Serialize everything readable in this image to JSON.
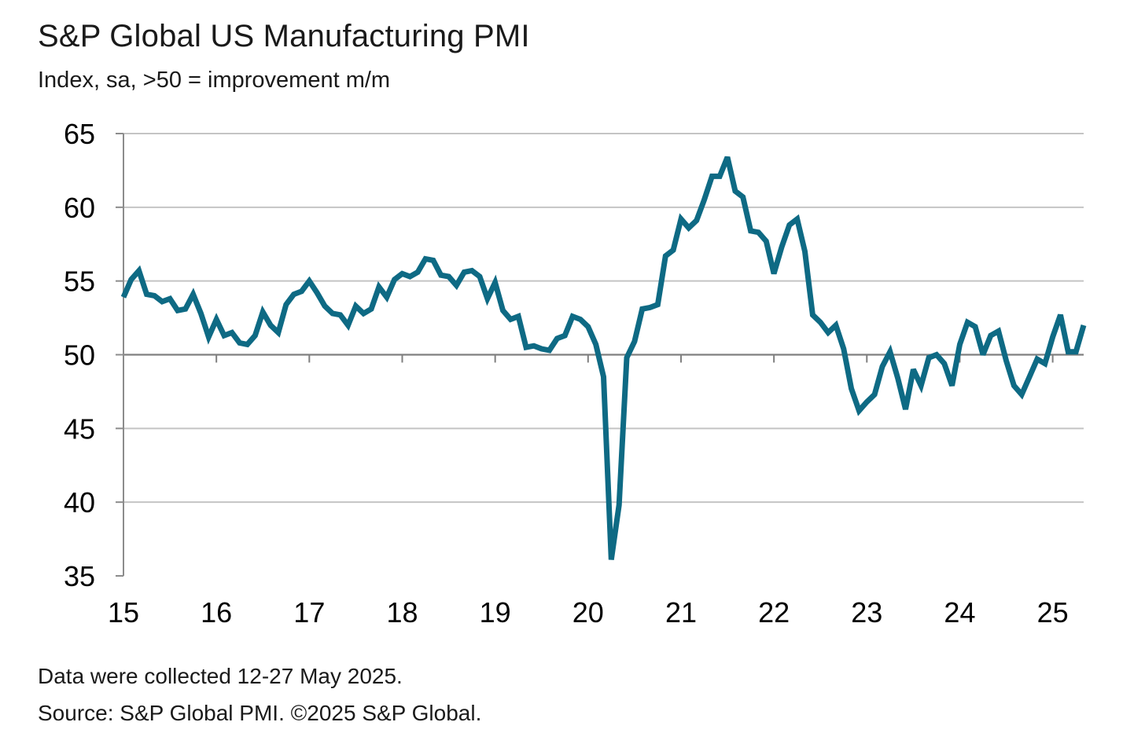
{
  "title": "S&P Global US Manufacturing PMI",
  "subtitle": "Index, sa, >50 = improvement m/m",
  "note_line1": "Data were collected 12-27 May 2025.",
  "note_line2": "Source: S&P Global PMI. ©2025 S&P Global.",
  "chart_data": {
    "type": "line",
    "title": "S&P Global US Manufacturing PMI",
    "ylabel": "Index, sa, >50 = improvement m/m",
    "ylim": [
      35,
      65
    ],
    "yticks": [
      35,
      40,
      45,
      50,
      55,
      60,
      65
    ],
    "xlim": [
      "2015-01",
      "2025-05"
    ],
    "xtick_labels": [
      "15",
      "16",
      "17",
      "18",
      "19",
      "20",
      "21",
      "22",
      "23",
      "24",
      "25"
    ],
    "grid": "horizontal",
    "reference_line": 50,
    "line_color": "#0e6a84",
    "series": [
      {
        "name": "",
        "start": "2015-01",
        "frequency": "monthly",
        "values": [
          53.9,
          55.1,
          55.7,
          54.1,
          54.0,
          53.6,
          53.8,
          53.0,
          53.1,
          54.1,
          52.8,
          51.2,
          52.4,
          51.3,
          51.5,
          50.8,
          50.7,
          51.3,
          52.9,
          52.0,
          51.5,
          53.4,
          54.1,
          54.3,
          55.0,
          54.2,
          53.3,
          52.8,
          52.7,
          52.0,
          53.3,
          52.8,
          53.1,
          54.6,
          53.9,
          55.1,
          55.5,
          55.3,
          55.6,
          56.5,
          56.4,
          55.4,
          55.3,
          54.7,
          55.6,
          55.7,
          55.3,
          53.8,
          54.9,
          53.0,
          52.4,
          52.6,
          50.5,
          50.6,
          50.4,
          50.3,
          51.1,
          51.3,
          52.6,
          52.4,
          51.9,
          50.7,
          48.5,
          36.1,
          39.8,
          49.8,
          50.9,
          53.1,
          53.2,
          53.4,
          56.7,
          57.1,
          59.2,
          58.6,
          59.1,
          60.5,
          62.1,
          62.1,
          63.4,
          61.1,
          60.7,
          58.4,
          58.3,
          57.7,
          55.5,
          57.3,
          58.8,
          59.2,
          57.0,
          52.7,
          52.2,
          51.5,
          52.0,
          50.4,
          47.7,
          46.2,
          46.8,
          47.3,
          49.2,
          50.2,
          48.4,
          46.3,
          49.0,
          47.9,
          49.8,
          50.0,
          49.4,
          47.9,
          50.7,
          52.2,
          51.9,
          50.0,
          51.3,
          51.6,
          49.6,
          47.9,
          47.3,
          48.5,
          49.7,
          49.4,
          51.2,
          52.7,
          50.2,
          50.2,
          52.0
        ]
      }
    ]
  }
}
